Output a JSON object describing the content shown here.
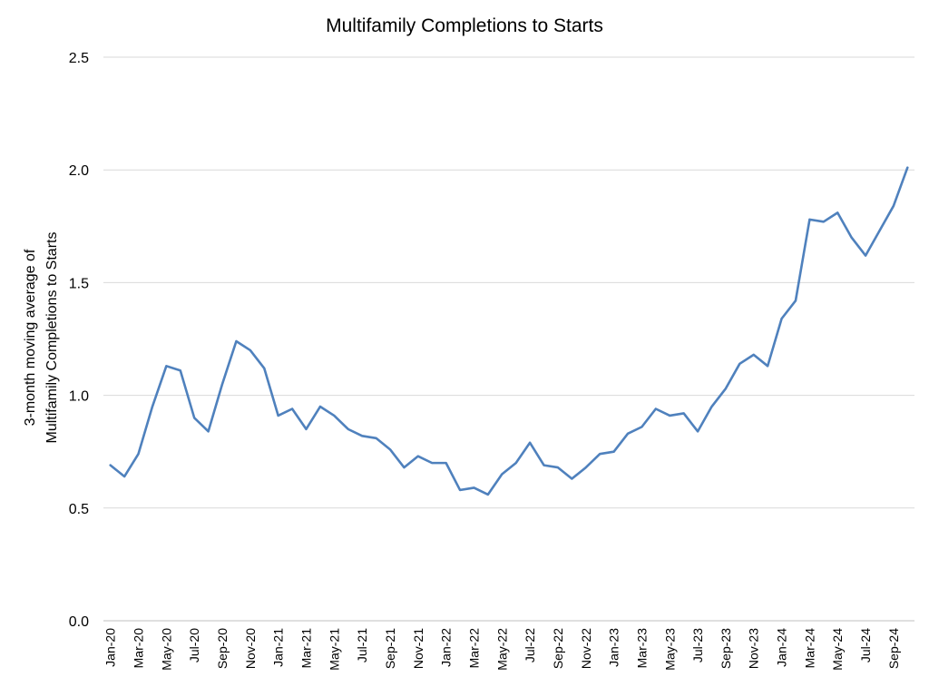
{
  "chart_data": {
    "type": "line",
    "title": "Multifamily Completions to Starts",
    "ylabel_lines": [
      "3-month moving average of",
      "Multifamily Completions to Starts"
    ],
    "xlabel": "",
    "ylim": [
      0,
      2.5
    ],
    "yticks": [
      "0.0",
      "0.5",
      "1.0",
      "1.5",
      "2.0",
      "2.5"
    ],
    "grid": true,
    "line_color": "#4F81BD",
    "x": [
      "Jan-20",
      "Feb-20",
      "Mar-20",
      "Apr-20",
      "May-20",
      "Jun-20",
      "Jul-20",
      "Aug-20",
      "Sep-20",
      "Oct-20",
      "Nov-20",
      "Dec-20",
      "Jan-21",
      "Feb-21",
      "Mar-21",
      "Apr-21",
      "May-21",
      "Jun-21",
      "Jul-21",
      "Aug-21",
      "Sep-21",
      "Oct-21",
      "Nov-21",
      "Dec-21",
      "Jan-22",
      "Feb-22",
      "Mar-22",
      "Apr-22",
      "May-22",
      "Jun-22",
      "Jul-22",
      "Aug-22",
      "Sep-22",
      "Oct-22",
      "Nov-22",
      "Dec-22",
      "Jan-23",
      "Feb-23",
      "Mar-23",
      "Apr-23",
      "May-23",
      "Jun-23",
      "Jul-23",
      "Aug-23",
      "Sep-23",
      "Oct-23",
      "Nov-23",
      "Dec-23",
      "Jan-24",
      "Feb-24",
      "Mar-24",
      "Apr-24",
      "May-24",
      "Jun-24",
      "Jul-24",
      "Aug-24",
      "Sep-24",
      "Oct-24"
    ],
    "xtick_labels": [
      "Jan-20",
      "Mar-20",
      "May-20",
      "Jul-20",
      "Sep-20",
      "Nov-20",
      "Jan-21",
      "Mar-21",
      "May-21",
      "Jul-21",
      "Sep-21",
      "Nov-21",
      "Jan-22",
      "Mar-22",
      "May-22",
      "Jul-22",
      "Sep-22",
      "Nov-22",
      "Jan-23",
      "Mar-23",
      "May-23",
      "Jul-23",
      "Sep-23",
      "Nov-23",
      "Jan-24",
      "Mar-24",
      "May-24",
      "Jul-24",
      "Sep-24"
    ],
    "values": [
      0.69,
      0.64,
      0.74,
      0.95,
      1.13,
      1.11,
      0.9,
      0.84,
      1.05,
      1.24,
      1.2,
      1.12,
      0.91,
      0.94,
      0.85,
      0.95,
      0.91,
      0.85,
      0.82,
      0.81,
      0.76,
      0.68,
      0.73,
      0.7,
      0.7,
      0.58,
      0.59,
      0.56,
      0.65,
      0.7,
      0.79,
      0.69,
      0.68,
      0.63,
      0.68,
      0.74,
      0.75,
      0.83,
      0.86,
      0.94,
      0.91,
      0.92,
      0.84,
      0.95,
      1.03,
      1.14,
      1.18,
      1.13,
      1.34,
      1.42,
      1.78,
      1.77,
      1.81,
      1.7,
      1.62,
      1.73,
      1.84,
      2.01
    ]
  }
}
